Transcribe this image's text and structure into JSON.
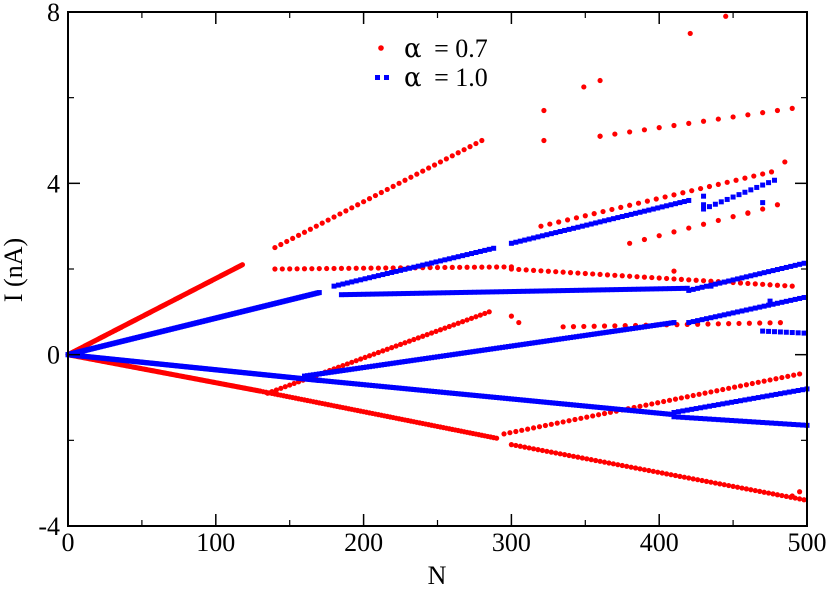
{
  "chart_data": {
    "type": "scatter",
    "title": "",
    "xlabel": "N",
    "ylabel": "I (nA)",
    "xlim": [
      0,
      500
    ],
    "ylim": [
      -4,
      8
    ],
    "xticks": [
      0,
      100,
      200,
      300,
      400,
      500
    ],
    "xtick_labels": [
      "0",
      "100",
      "200",
      "300",
      "400",
      "500"
    ],
    "yticks": [
      -4,
      0,
      4,
      8
    ],
    "ytick_labels": [
      "-4",
      "0",
      "4",
      "8"
    ],
    "grid": false,
    "legend_position": "top-center",
    "series": [
      {
        "name": "α = 0.7",
        "legend_symbol": "α",
        "legend_value": "= 0.7",
        "color": "#ff0000",
        "marker": "circle",
        "segments": [
          {
            "x0": 0,
            "x1": 118,
            "y0": 0,
            "y1": 2.1,
            "step": 1
          },
          {
            "x0": 0,
            "x1": 130,
            "y0": 0,
            "y1": -0.85,
            "step": 1
          },
          {
            "x0": 130,
            "x1": 290,
            "y0": -0.85,
            "y1": -1.95,
            "step": 2
          },
          {
            "x0": 300,
            "x1": 500,
            "y0": -2.1,
            "y1": -3.4,
            "step": 3
          },
          {
            "x0": 135,
            "x1": 285,
            "y0": -0.9,
            "y1": 1.0,
            "step": 3
          },
          {
            "x0": 295,
            "x1": 495,
            "y0": -1.85,
            "y1": -0.45,
            "step": 4
          },
          {
            "x0": 140,
            "x1": 300,
            "y0": 2.0,
            "y1": 2.05,
            "step": 5
          },
          {
            "x0": 300,
            "x1": 490,
            "y0": 2.0,
            "y1": 1.6,
            "step": 5
          },
          {
            "x0": 140,
            "x1": 280,
            "y0": 2.5,
            "y1": 5.0,
            "step": 4
          },
          {
            "x0": 320,
            "x1": 480,
            "y0": 3.0,
            "y1": 4.3,
            "step": 6
          },
          {
            "x0": 335,
            "x1": 485,
            "y0": 0.65,
            "y1": 0.75,
            "step": 7
          },
          {
            "x0": 360,
            "x1": 490,
            "y0": 5.1,
            "y1": 5.75,
            "step": 10
          },
          {
            "x0": 380,
            "x1": 470,
            "y0": 2.6,
            "y1": 3.4,
            "step": 10
          }
        ],
        "points": [
          [
            300,
            0.9
          ],
          [
            305,
            0.75
          ],
          [
            322,
            5.7
          ],
          [
            322,
            5.0
          ],
          [
            349,
            6.25
          ],
          [
            360,
            6.4
          ],
          [
            360,
            5.1
          ],
          [
            421,
            7.5
          ],
          [
            445,
            7.9
          ],
          [
            485,
            4.5
          ],
          [
            490,
            -3.3
          ],
          [
            495,
            -3.2
          ],
          [
            480,
            3.5
          ],
          [
            460,
            3.3
          ],
          [
            410,
            1.95
          ]
        ]
      },
      {
        "name": "α = 1.0",
        "legend_symbol": "α",
        "legend_value": "= 1.0",
        "color": "#0000ff",
        "marker": "square",
        "segments": [
          {
            "x0": 0,
            "x1": 170,
            "y0": 0,
            "y1": 1.45,
            "step": 1
          },
          {
            "x0": 0,
            "x1": 170,
            "y0": 0,
            "y1": -0.6,
            "step": 1
          },
          {
            "x0": 170,
            "x1": 410,
            "y0": -0.6,
            "y1": -1.4,
            "step": 2
          },
          {
            "x0": 410,
            "x1": 500,
            "y0": -1.45,
            "y1": -1.65,
            "step": 3
          },
          {
            "x0": 160,
            "x1": 410,
            "y0": -0.5,
            "y1": 0.75,
            "step": 2
          },
          {
            "x0": 410,
            "x1": 500,
            "y0": -1.35,
            "y1": -0.8,
            "step": 3
          },
          {
            "x0": 180,
            "x1": 290,
            "y0": 1.6,
            "y1": 2.5,
            "step": 3
          },
          {
            "x0": 300,
            "x1": 420,
            "y0": 2.6,
            "y1": 3.6,
            "step": 3
          },
          {
            "x0": 185,
            "x1": 420,
            "y0": 1.4,
            "y1": 1.55,
            "step": 3
          },
          {
            "x0": 420,
            "x1": 500,
            "y0": 1.5,
            "y1": 2.15,
            "step": 3
          },
          {
            "x0": 420,
            "x1": 500,
            "y0": 0.75,
            "y1": 1.35,
            "step": 3
          },
          {
            "x0": 430,
            "x1": 480,
            "y0": 3.4,
            "y1": 4.1,
            "step": 4
          },
          {
            "x0": 470,
            "x1": 500,
            "y0": 0.55,
            "y1": 0.5,
            "step": 4
          }
        ],
        "points": [
          [
            430,
            3.7
          ],
          [
            430,
            3.5
          ],
          [
            435,
            1.6
          ],
          [
            470,
            3.55
          ],
          [
            475,
            1.25
          ]
        ]
      }
    ]
  }
}
